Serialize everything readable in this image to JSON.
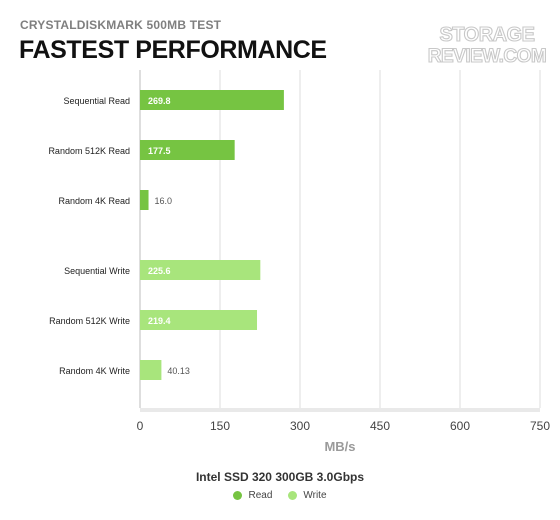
{
  "header": {
    "subtitle": "CRYSTALDISKMARK 500MB TEST",
    "title": "FASTEST PERFORMANCE",
    "watermark_line1": "STORAGE",
    "watermark_line2": "REVIEW.COM"
  },
  "colors": {
    "read": "#76c442",
    "write": "#a8e57c",
    "grid": "#dcdcdc",
    "axis_text": "#444444",
    "bar_label_inside": "#ffffff",
    "bar_label_outside": "#555555"
  },
  "legend": {
    "title": "Intel SSD 320 300GB 3.0Gbps",
    "read_label": "Read",
    "write_label": "Write"
  },
  "chart_data": {
    "type": "bar",
    "orientation": "horizontal",
    "title": "FASTEST PERFORMANCE",
    "subtitle": "CRYSTALDISKMARK 500MB TEST",
    "xlabel": "MB/s",
    "xlim": [
      0,
      750
    ],
    "xticks": [
      0,
      150,
      300,
      450,
      600,
      750
    ],
    "grid": true,
    "legend_position": "bottom-center",
    "series": [
      {
        "name": "Read",
        "color": "#76c442",
        "categories": [
          "Sequential Read",
          "Random 512K Read",
          "Random 4K Read"
        ],
        "values": [
          269.8,
          177.5,
          16.0
        ],
        "labels": [
          "269.8",
          "177.5",
          "16.0"
        ]
      },
      {
        "name": "Write",
        "color": "#a8e57c",
        "categories": [
          "Sequential Write",
          "Random 512K Write",
          "Random 4K Write"
        ],
        "values": [
          225.6,
          219.4,
          40.13
        ],
        "labels": [
          "225.6",
          "219.4",
          "40.13"
        ]
      }
    ]
  }
}
